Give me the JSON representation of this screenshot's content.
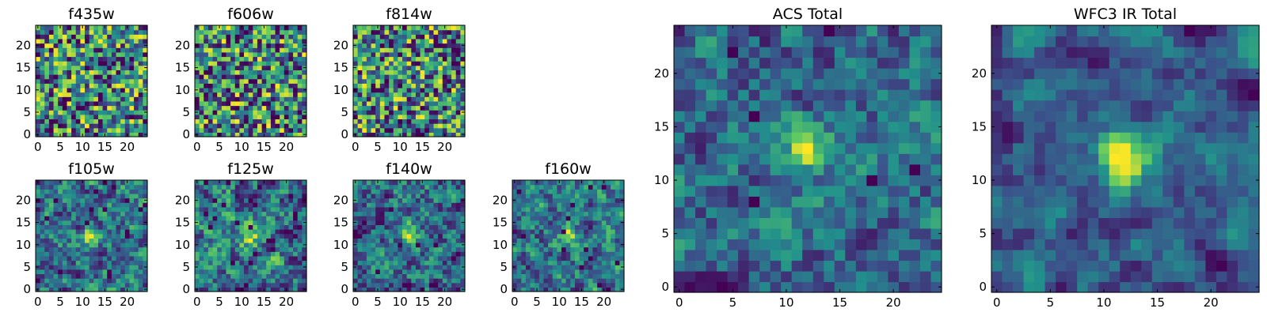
{
  "chart_data": [
    {
      "type": "heatmap",
      "title": "f435w",
      "xticks": [
        "0",
        "5",
        "10",
        "15",
        "20"
      ],
      "yticks": [
        "0",
        "5",
        "10",
        "15",
        "20"
      ],
      "xlim": [
        -0.5,
        24.5
      ],
      "ylim": [
        -0.5,
        24.5
      ],
      "n": 25,
      "seed": 11,
      "mode": "noise",
      "dark": 0.06
    },
    {
      "type": "heatmap",
      "title": "f606w",
      "xticks": [
        "0",
        "5",
        "10",
        "15",
        "20"
      ],
      "yticks": [
        "0",
        "5",
        "10",
        "15",
        "20"
      ],
      "xlim": [
        -0.5,
        24.5
      ],
      "ylim": [
        -0.5,
        24.5
      ],
      "n": 25,
      "seed": 23,
      "mode": "noise",
      "dark": 0.07
    },
    {
      "type": "heatmap",
      "title": "f814w",
      "xticks": [
        "0",
        "5",
        "10",
        "15",
        "20"
      ],
      "yticks": [
        "0",
        "5",
        "10",
        "15",
        "20"
      ],
      "xlim": [
        -0.5,
        24.5
      ],
      "ylim": [
        -0.5,
        24.5
      ],
      "n": 25,
      "seed": 37,
      "mode": "noise",
      "dark": 0.07
    },
    {
      "type": "heatmap",
      "title": "f105w",
      "xticks": [
        "0",
        "5",
        "10",
        "15",
        "20"
      ],
      "yticks": [
        "0",
        "5",
        "10",
        "15",
        "20"
      ],
      "xlim": [
        -0.5,
        24.5
      ],
      "ylim": [
        -0.5,
        24.5
      ],
      "n": 25,
      "seed": 41,
      "mode": "smooth",
      "source": [
        12,
        12
      ],
      "dark": 0.02
    },
    {
      "type": "heatmap",
      "title": "f125w",
      "xticks": [
        "0",
        "5",
        "10",
        "15",
        "20"
      ],
      "yticks": [
        "0",
        "5",
        "10",
        "15",
        "20"
      ],
      "xlim": [
        -0.5,
        24.5
      ],
      "ylim": [
        -0.5,
        24.5
      ],
      "n": 25,
      "seed": 53,
      "mode": "smooth",
      "source": [
        12,
        12
      ],
      "dark": 0.03
    },
    {
      "type": "heatmap",
      "title": "f140w",
      "xticks": [
        "0",
        "5",
        "10",
        "15",
        "20"
      ],
      "yticks": [
        "0",
        "5",
        "10",
        "15",
        "20"
      ],
      "xlim": [
        -0.5,
        24.5
      ],
      "ylim": [
        -0.5,
        24.5
      ],
      "n": 25,
      "seed": 67,
      "mode": "smooth",
      "source": [
        12,
        13
      ],
      "dark": 0.03
    },
    {
      "type": "heatmap",
      "title": "f160w",
      "xticks": [
        "0",
        "5",
        "10",
        "15",
        "20"
      ],
      "yticks": [
        "0",
        "5",
        "10",
        "15",
        "20"
      ],
      "xlim": [
        -0.5,
        24.5
      ],
      "ylim": [
        -0.5,
        24.5
      ],
      "n": 25,
      "seed": 79,
      "mode": "smooth",
      "source": [
        12,
        12
      ],
      "dark": 0.03
    },
    {
      "type": "heatmap",
      "title": "ACS Total",
      "xticks": [
        "0",
        "5",
        "10",
        "15",
        "20"
      ],
      "yticks": [
        "0",
        "5",
        "10",
        "15",
        "20"
      ],
      "xlim": [
        -0.5,
        24.5
      ],
      "ylim": [
        -0.5,
        24.5
      ],
      "n": 25,
      "seed": 97,
      "mode": "acs",
      "source": [
        12,
        13
      ],
      "dark": 0.015
    },
    {
      "type": "heatmap",
      "title": "WFC3 IR Total",
      "xticks": [
        "0",
        "5",
        "10",
        "15",
        "20"
      ],
      "yticks": [
        "0",
        "5",
        "10",
        "15",
        "20"
      ],
      "xlim": [
        -0.5,
        24.5
      ],
      "ylim": [
        -0.5,
        24.5
      ],
      "n": 25,
      "seed": 113,
      "mode": "ir",
      "source": [
        12,
        12
      ],
      "dark": 0.0
    }
  ],
  "colormap": [
    "#440154",
    "#3b528b",
    "#21918c",
    "#5ec962",
    "#fde725"
  ]
}
